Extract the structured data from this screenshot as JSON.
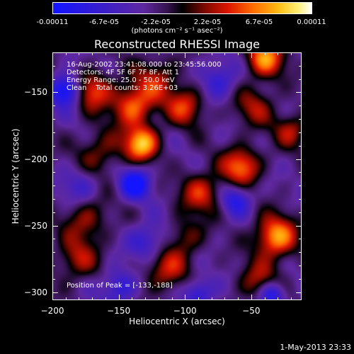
{
  "colorbar": {
    "tick_labels": [
      "-0.00011",
      "-6.7e-05",
      "-2.2e-05",
      "2.2e-05",
      "6.7e-05",
      "0.00011"
    ],
    "units_label": "(photons cm⁻² s⁻¹ asec⁻²)",
    "range": [
      -0.00011,
      0.00011
    ]
  },
  "chart_data": {
    "type": "heatmap",
    "title": "Reconstructed RHESSI Image",
    "xlabel": "Heliocentric X (arcsec)",
    "ylabel": "Heliocentric Y (arcsec)",
    "xlim": [
      -200,
      -12
    ],
    "ylim": [
      -306,
      -120
    ],
    "x_ticks": [
      -200,
      -150,
      -100,
      -50
    ],
    "y_ticks": [
      -150,
      -200,
      -250,
      -300
    ],
    "x_tick_labels": [
      "−200",
      "−150",
      "−100",
      "−50"
    ],
    "y_tick_labels": [
      "−150",
      "−200",
      "−250",
      "−300"
    ],
    "colormap": "red-blue (blue = negative, black = 0, white = positive)",
    "peak": {
      "x": -133,
      "y": -188
    },
    "blobs": [
      {
        "x": -133,
        "y": -188,
        "v": 1.0,
        "r": 9
      },
      {
        "x": -140,
        "y": -160,
        "v": 0.75,
        "r": 11
      },
      {
        "x": -170,
        "y": -148,
        "v": 0.7,
        "r": 10
      },
      {
        "x": -100,
        "y": -160,
        "v": 0.62,
        "r": 10
      },
      {
        "x": -122,
        "y": -140,
        "v": 0.48,
        "r": 12
      },
      {
        "x": -40,
        "y": -124,
        "v": 0.85,
        "r": 10
      },
      {
        "x": -48,
        "y": -160,
        "v": 0.45,
        "r": 11
      },
      {
        "x": -58,
        "y": -205,
        "v": 0.8,
        "r": 10
      },
      {
        "x": -32,
        "y": -258,
        "v": 0.93,
        "r": 11
      },
      {
        "x": -44,
        "y": -292,
        "v": 0.5,
        "r": 11
      },
      {
        "x": -88,
        "y": -225,
        "v": 0.6,
        "r": 11
      },
      {
        "x": -165,
        "y": -195,
        "v": 0.42,
        "r": 12
      },
      {
        "x": -175,
        "y": -245,
        "v": 0.45,
        "r": 12
      },
      {
        "x": -182,
        "y": -275,
        "v": 0.48,
        "r": 11
      },
      {
        "x": -115,
        "y": -282,
        "v": 0.55,
        "r": 12
      },
      {
        "x": -20,
        "y": -178,
        "v": 0.5,
        "r": 9
      },
      {
        "x": -100,
        "y": -258,
        "v": 0.38,
        "r": 10
      },
      {
        "x": -190,
        "y": -148,
        "v": -0.9,
        "r": 8
      },
      {
        "x": -138,
        "y": -218,
        "v": -0.85,
        "r": 8
      },
      {
        "x": -35,
        "y": -301,
        "v": -0.8,
        "r": 7
      },
      {
        "x": -62,
        "y": -230,
        "v": -0.55,
        "r": 8
      },
      {
        "x": -128,
        "y": -262,
        "v": -0.5,
        "r": 10
      },
      {
        "x": -75,
        "y": -140,
        "v": -0.45,
        "r": 10
      },
      {
        "x": -150,
        "y": -295,
        "v": -0.5,
        "r": 9
      },
      {
        "x": -180,
        "y": -220,
        "v": -0.35,
        "r": 10
      },
      {
        "x": -90,
        "y": -300,
        "v": -0.55,
        "r": 8
      }
    ],
    "background_level": -0.25
  },
  "annotation": {
    "time_range": "16-Aug-2002 23:41:08.000 to 23:45:56.000",
    "detectors": "Detectors: 4F 5F 6F 7F 8F, Att 1",
    "energy_range": "Energy Range: 25.0 - 50.0 keV",
    "clean": "Clean    Total counts: 3.26E+03",
    "peak_position": "Position of Peak = [-133,-188]"
  },
  "footer": {
    "date": "1-May-2013 23:33"
  }
}
